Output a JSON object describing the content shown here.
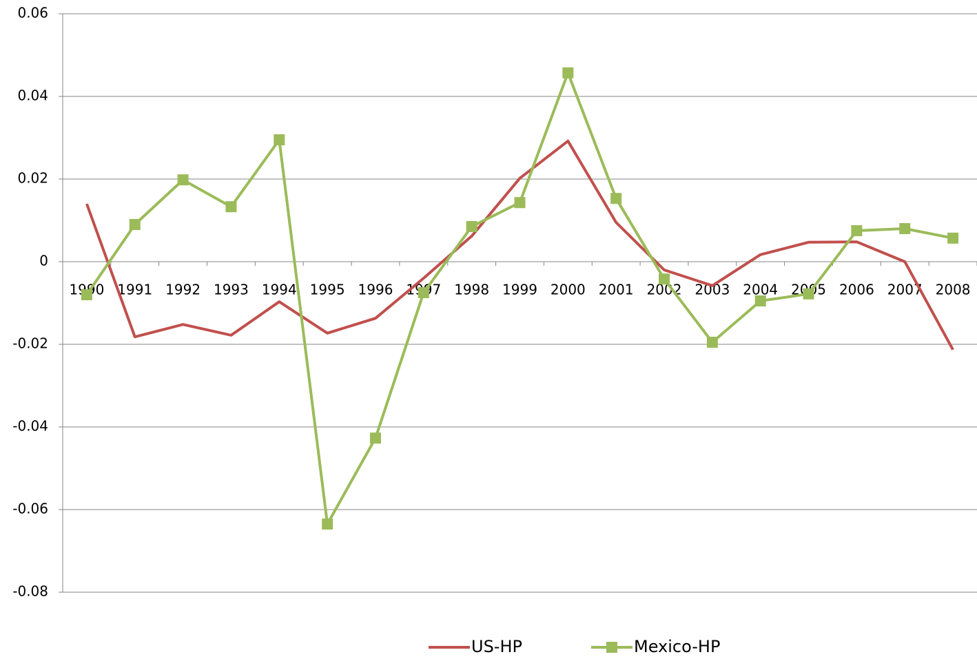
{
  "chart_data": {
    "type": "line",
    "categories": [
      "1990",
      "1991",
      "1992",
      "1993",
      "1994",
      "1995",
      "1996",
      "1997",
      "1998",
      "1999",
      "2000",
      "2001",
      "2002",
      "2003",
      "2004",
      "2005",
      "2006",
      "2007",
      "2008"
    ],
    "series": [
      {
        "name": "US-HP",
        "color": "#c0504d",
        "marker": "none",
        "values": [
          0.014,
          -0.0182,
          -0.0152,
          -0.0178,
          -0.0097,
          -0.0173,
          -0.0137,
          -0.004,
          0.0062,
          0.0202,
          0.0292,
          0.0095,
          -0.002,
          -0.0058,
          0.0017,
          0.0047,
          0.0048,
          0.0,
          -0.0213
        ]
      },
      {
        "name": "Mexico-HP",
        "color": "#9bbb59",
        "marker": "square",
        "values": [
          -0.008,
          0.009,
          0.0198,
          0.0133,
          0.0295,
          -0.0635,
          -0.0427,
          -0.0075,
          0.0085,
          0.0143,
          0.0457,
          0.0153,
          -0.0042,
          -0.0195,
          -0.0095,
          -0.0078,
          0.0075,
          0.008,
          0.0057
        ]
      }
    ],
    "ylim": [
      -0.08,
      0.06
    ],
    "yticks": [
      -0.08,
      -0.06,
      -0.04,
      -0.02,
      0,
      0.02,
      0.04,
      0.06
    ],
    "grid": true,
    "legend": "bottom"
  }
}
